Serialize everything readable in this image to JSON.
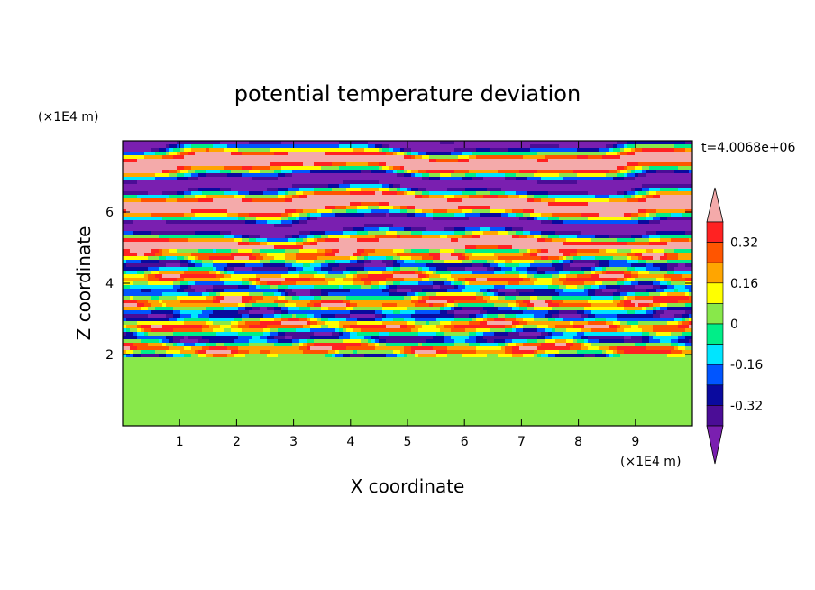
{
  "chart_data": {
    "type": "heatmap",
    "title": "potential temperature deviation",
    "xlabel": "X coordinate",
    "ylabel": "Z coordinate",
    "x_unit": "(×1E4 m)",
    "y_unit": "(×1E4 m)",
    "time_label": "t=4.0068e+06",
    "xlim": [
      0,
      10
    ],
    "ylim": [
      0,
      8
    ],
    "x_ticks": [
      1,
      2,
      3,
      4,
      5,
      6,
      7,
      8,
      9
    ],
    "y_ticks": [
      2,
      4,
      6
    ],
    "colorbar": {
      "levels": [
        -0.4,
        -0.32,
        -0.24,
        -0.16,
        -0.08,
        0,
        0.08,
        0.16,
        0.24,
        0.32,
        0.4
      ],
      "tick_labels": [
        "0.32",
        "0.16",
        "0",
        "-0.16",
        "-0.32"
      ],
      "tick_values": [
        0.32,
        0.16,
        0,
        -0.16,
        -0.32
      ],
      "colors": [
        "#7a1fb0",
        "#4b0d96",
        "#0a0a9e",
        "#0055ff",
        "#00e5ff",
        "#00ee88",
        "#88e84a",
        "#ffff00",
        "#ffa500",
        "#ff5500",
        "#ff2222",
        "#f4aaaa"
      ]
    },
    "regions": [
      {
        "z_range": [
          0,
          2
        ],
        "description_values": [
          0,
          0.08
        ]
      },
      {
        "z_range": [
          2,
          5
        ],
        "description_values": [
          -0.4,
          0.4
        ]
      },
      {
        "z_range": [
          5,
          8
        ],
        "description_values": [
          -0.4,
          0.4
        ]
      }
    ]
  }
}
